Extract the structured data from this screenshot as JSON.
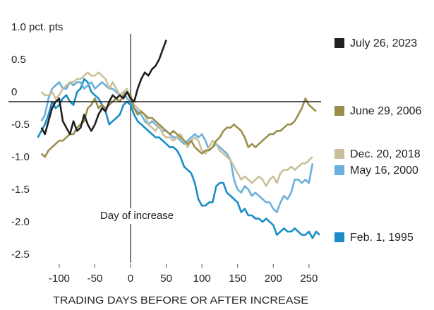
{
  "chart_data": {
    "type": "line",
    "x_label": "TRADING DAYS BEFORE OR AFTER INCREASE",
    "annotations": [
      {
        "text": "Day of increase",
        "x": 0
      }
    ],
    "xlim": [
      -135,
      265
    ],
    "ylim": [
      -2.5,
      1
    ],
    "xticks": [
      -100,
      -50,
      0,
      50,
      100,
      150,
      200,
      250
    ],
    "yticks": [
      {
        "value": 1,
        "label": "1.0 pct. pts"
      },
      0.5,
      0,
      -0.5,
      {
        "value": -1,
        "label": "-1.0"
      },
      -1.5,
      {
        "value": -2,
        "label": "-2.0"
      },
      -2.5
    ],
    "grid": false,
    "zero_line": true,
    "x": [
      -130,
      -125,
      -120,
      -115,
      -110,
      -105,
      -100,
      -95,
      -90,
      -85,
      -80,
      -75,
      -70,
      -65,
      -60,
      -55,
      -50,
      -45,
      -40,
      -35,
      -30,
      -25,
      -20,
      -15,
      -10,
      -5,
      0,
      5,
      10,
      15,
      20,
      25,
      30,
      35,
      40,
      45,
      50,
      55,
      60,
      65,
      70,
      75,
      80,
      85,
      90,
      95,
      100,
      105,
      110,
      115,
      120,
      125,
      130,
      135,
      140,
      145,
      150,
      155,
      160,
      165,
      170,
      175,
      180,
      185,
      190,
      195,
      200,
      205,
      210,
      215,
      220,
      225,
      230,
      235,
      240,
      245,
      250,
      255,
      260,
      265
    ],
    "series": [
      {
        "name": "July 26, 2023",
        "color": "#231f20",
        "values": [
          null,
          -0.4,
          -0.5,
          -0.3,
          -0.1,
          0,
          0.05,
          -0.3,
          -0.4,
          -0.5,
          -0.3,
          -0.45,
          -0.4,
          -0.2,
          -0.35,
          -0.45,
          -0.35,
          -0.2,
          -0.1,
          -0.15,
          0,
          0.1,
          0.05,
          0.1,
          0.05,
          0.15,
          0.05,
          0,
          0.2,
          0.35,
          0.45,
          0.4,
          0.5,
          0.55,
          0.65,
          0.8,
          0.95,
          null,
          null,
          null,
          null,
          null,
          null,
          null,
          null,
          null,
          null,
          null,
          null,
          null,
          null,
          null,
          null,
          null,
          null,
          null,
          null,
          null,
          null,
          null,
          null,
          null,
          null,
          null,
          null,
          null,
          null,
          null,
          null,
          null,
          null,
          null,
          null,
          null,
          null,
          null,
          null,
          null,
          null,
          null
        ]
      },
      {
        "name": "June 29, 2006",
        "color": "#9a8f4a",
        "values": [
          null,
          -0.8,
          -0.85,
          -0.75,
          -0.7,
          -0.65,
          -0.6,
          -0.6,
          -0.55,
          -0.5,
          -0.5,
          -0.4,
          -0.35,
          -0.3,
          -0.1,
          -0.05,
          0.05,
          -0.1,
          -0.05,
          -0.1,
          -0.05,
          0,
          0.05,
          0,
          0.1,
          0.15,
          0.1,
          -0.1,
          -0.2,
          -0.15,
          -0.2,
          -0.25,
          -0.25,
          -0.3,
          -0.35,
          -0.4,
          -0.45,
          -0.5,
          -0.45,
          -0.5,
          -0.55,
          -0.6,
          -0.65,
          -0.6,
          -0.7,
          -0.75,
          -0.8,
          -0.75,
          -0.75,
          -0.7,
          -0.6,
          -0.55,
          -0.45,
          -0.4,
          -0.4,
          -0.35,
          -0.4,
          -0.45,
          -0.55,
          -0.7,
          -0.65,
          -0.7,
          -0.65,
          -0.6,
          -0.55,
          -0.5,
          -0.5,
          -0.45,
          -0.45,
          -0.4,
          -0.35,
          -0.35,
          -0.3,
          -0.2,
          -0.1,
          0.05,
          -0.05,
          -0.1,
          -0.15,
          null
        ]
      },
      {
        "name": "Dec. 20, 2018",
        "color": "#c9c09a",
        "values": [
          null,
          0.15,
          0.1,
          0.1,
          0.15,
          0.05,
          0.1,
          0.2,
          0.25,
          0.3,
          0.3,
          0.35,
          0.35,
          0.4,
          0.45,
          0.4,
          0.4,
          0.45,
          0.4,
          0.35,
          0.2,
          0.3,
          0.2,
          0.1,
          0.15,
          0.2,
          0.05,
          -0.05,
          -0.1,
          -0.15,
          -0.2,
          -0.35,
          -0.4,
          -0.45,
          -0.35,
          -0.5,
          -0.55,
          -0.55,
          -0.6,
          -0.55,
          -0.5,
          -0.6,
          -0.7,
          -0.6,
          -0.55,
          -0.6,
          -0.75,
          -0.8,
          -0.7,
          -0.6,
          -0.65,
          -0.75,
          -0.8,
          -0.85,
          -0.9,
          -1.0,
          -1.1,
          -1.2,
          -1.15,
          -1.2,
          -1.25,
          -1.2,
          -1.15,
          -1.2,
          -1.3,
          -1.2,
          -1.15,
          -1.25,
          -1.1,
          -1.05,
          -1.05,
          -1.0,
          -1.05,
          -1.0,
          -0.95,
          -0.95,
          -0.9,
          -0.85,
          null,
          null
        ]
      },
      {
        "name": "May 16, 2000",
        "color": "#6bafdc",
        "values": [
          null,
          -0.3,
          -0.2,
          0.05,
          0.2,
          0.25,
          0.3,
          0.2,
          0.2,
          0.3,
          0.25,
          0.3,
          0.3,
          0.2,
          0.25,
          0.3,
          0.2,
          0.25,
          0.3,
          0.25,
          0.2,
          0.2,
          0.15,
          0.1,
          0.15,
          0.05,
          0,
          -0.1,
          -0.15,
          -0.2,
          -0.3,
          -0.35,
          -0.3,
          -0.35,
          -0.4,
          -0.45,
          -0.45,
          -0.5,
          -0.55,
          -0.55,
          -0.6,
          -0.65,
          -0.6,
          -0.55,
          -0.5,
          -0.55,
          -0.5,
          -0.6,
          -0.75,
          -0.7,
          -0.65,
          -0.7,
          -0.75,
          -0.8,
          -0.9,
          -1.2,
          -1.35,
          -1.4,
          -1.3,
          -1.35,
          -1.45,
          -1.4,
          -1.45,
          -1.5,
          -1.55,
          -1.55,
          -1.65,
          -1.7,
          -1.55,
          -1.45,
          -1.5,
          -1.4,
          -1.2,
          -1.2,
          -1.25,
          -1.2,
          -1.25,
          -0.95,
          null,
          null
        ]
      },
      {
        "name": "Feb. 1, 1995",
        "color": "#1a8dc8",
        "values": [
          -0.55,
          -0.45,
          -0.35,
          -0.2,
          0,
          -0.1,
          -0.05,
          0.05,
          0.1,
          0,
          -0.05,
          0.15,
          0.2,
          0.35,
          0.3,
          0.15,
          0.1,
          0.05,
          -0.05,
          -0.15,
          -0.35,
          -0.3,
          -0.25,
          -0.2,
          -0.05,
          0,
          -0.05,
          -0.2,
          -0.3,
          -0.35,
          -0.4,
          -0.45,
          -0.5,
          -0.55,
          -0.55,
          -0.6,
          -0.65,
          -0.7,
          -0.7,
          -0.75,
          -0.85,
          -1.0,
          -1.05,
          -1.1,
          -1.25,
          -1.5,
          -1.6,
          -1.6,
          -1.55,
          -1.55,
          -1.3,
          -1.25,
          -1.25,
          -1.4,
          -1.45,
          -1.5,
          -1.55,
          -1.7,
          -1.65,
          -1.75,
          -1.75,
          -1.8,
          -1.8,
          -1.85,
          -1.8,
          -1.85,
          -1.9,
          -2.05,
          -2.0,
          -1.95,
          -2.0,
          -2.0,
          -1.95,
          -2.0,
          -2.05,
          -2.05,
          -2.0,
          -2.1,
          -2.0,
          -2.05
        ]
      }
    ]
  }
}
